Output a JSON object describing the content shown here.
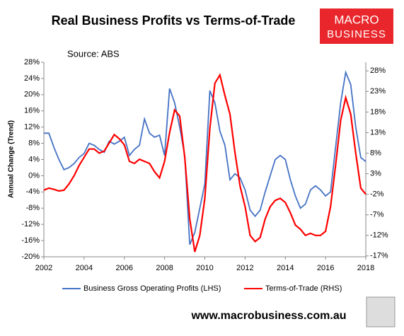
{
  "chart_data": {
    "type": "line",
    "title": "Real Business Profits vs Terms-of-Trade",
    "subtitle": "Source: ABS",
    "logo": [
      "MACRO",
      "BUSINESS"
    ],
    "footer": "www.macrobusiness.com.au",
    "ylabel": "Annual Change (Trend)",
    "x": [
      2002,
      2002.25,
      2002.5,
      2002.75,
      2003,
      2003.25,
      2003.5,
      2003.75,
      2004,
      2004.25,
      2004.5,
      2004.75,
      2005,
      2005.25,
      2005.5,
      2005.75,
      2006,
      2006.25,
      2006.5,
      2006.75,
      2007,
      2007.25,
      2007.5,
      2007.75,
      2008,
      2008.25,
      2008.5,
      2008.75,
      2009,
      2009.25,
      2009.5,
      2009.75,
      2010,
      2010.25,
      2010.5,
      2010.75,
      2011,
      2011.25,
      2011.5,
      2011.75,
      2012,
      2012.25,
      2012.5,
      2012.75,
      2013,
      2013.25,
      2013.5,
      2013.75,
      2014,
      2014.25,
      2014.5,
      2014.75,
      2015,
      2015.25,
      2015.5,
      2015.75,
      2016,
      2016.25,
      2016.5,
      2016.75,
      2017,
      2017.25,
      2017.5,
      2017.75,
      2018
    ],
    "xlim": [
      2002,
      2018
    ],
    "xticks": [
      2002,
      2004,
      2006,
      2008,
      2010,
      2012,
      2014,
      2016,
      2018
    ],
    "ylim": [
      -20,
      28
    ],
    "yticks": [
      {
        "value": -20,
        "label": "-20%"
      },
      {
        "value": -16,
        "label": "-16%"
      },
      {
        "value": -12,
        "label": "-12%"
      },
      {
        "value": -8,
        "label": "-8%"
      },
      {
        "value": -4,
        "label": "-4%"
      },
      {
        "value": 0,
        "label": "0%"
      },
      {
        "value": 4,
        "label": "4%"
      },
      {
        "value": 8,
        "label": "8%"
      },
      {
        "value": 12,
        "label": "12%"
      },
      {
        "value": 16,
        "label": "16%"
      },
      {
        "value": 20,
        "label": "20%"
      },
      {
        "value": 24,
        "label": "24%"
      },
      {
        "value": 28,
        "label": "28%"
      }
    ],
    "y2lim": [
      -17.2,
      30.1
    ],
    "y2ticks": [
      {
        "value": -17,
        "label": "-17%"
      },
      {
        "value": -12,
        "label": "-12%"
      },
      {
        "value": -7,
        "label": "-7%"
      },
      {
        "value": -2,
        "label": "-2%"
      },
      {
        "value": 3,
        "label": "3%"
      },
      {
        "value": 8,
        "label": "8%"
      },
      {
        "value": 13,
        "label": "13%"
      },
      {
        "value": 18,
        "label": "18%"
      },
      {
        "value": 23,
        "label": "23%"
      },
      {
        "value": 28,
        "label": "28%"
      }
    ],
    "series": [
      {
        "name": "Business Gross Operating Profits (LHS)",
        "color": "#4472c4",
        "axis": "y",
        "values": [
          10.5,
          10.5,
          7,
          4,
          1.5,
          2,
          3,
          4.5,
          5.5,
          8,
          7.5,
          6.5,
          5.8,
          8.5,
          7.8,
          8.5,
          9.5,
          5,
          6.5,
          7.5,
          14,
          10.5,
          9.5,
          10,
          5,
          21.5,
          18,
          12,
          5,
          -17,
          -14,
          -8,
          -2,
          21,
          18,
          11,
          7.5,
          -1,
          0.5,
          -0.5,
          -3.5,
          -8.5,
          -10,
          -8.5,
          -4,
          0,
          4,
          5,
          4,
          -1,
          -5,
          -8,
          -7,
          -3.5,
          -2.5,
          -3.5,
          -5,
          -4,
          7,
          18,
          25.5,
          22.5,
          12,
          4.5,
          3.5
        ]
      },
      {
        "name": "Terms-of-Trade (RHS)",
        "color": "#ff0000",
        "axis": "y2",
        "values": [
          -1,
          -0.5,
          -0.8,
          -1.2,
          -1,
          0.5,
          2.5,
          5,
          7,
          9,
          9,
          8,
          8.5,
          10.5,
          12.5,
          11.5,
          10,
          6,
          5.5,
          6.5,
          6,
          5.5,
          3.5,
          2,
          6,
          13,
          18.5,
          17,
          7,
          -8,
          -16,
          -12,
          -3,
          14,
          25,
          27,
          22,
          17.5,
          8,
          0,
          -5,
          -12,
          -13.5,
          -12.5,
          -8,
          -5,
          -3.5,
          -3,
          -4,
          -6.5,
          -9.5,
          -10.5,
          -12,
          -11.5,
          -12,
          -12,
          -11,
          -5,
          5,
          16,
          21.5,
          17.5,
          8,
          -0.5,
          -2
        ]
      }
    ],
    "legend": "bottom"
  }
}
